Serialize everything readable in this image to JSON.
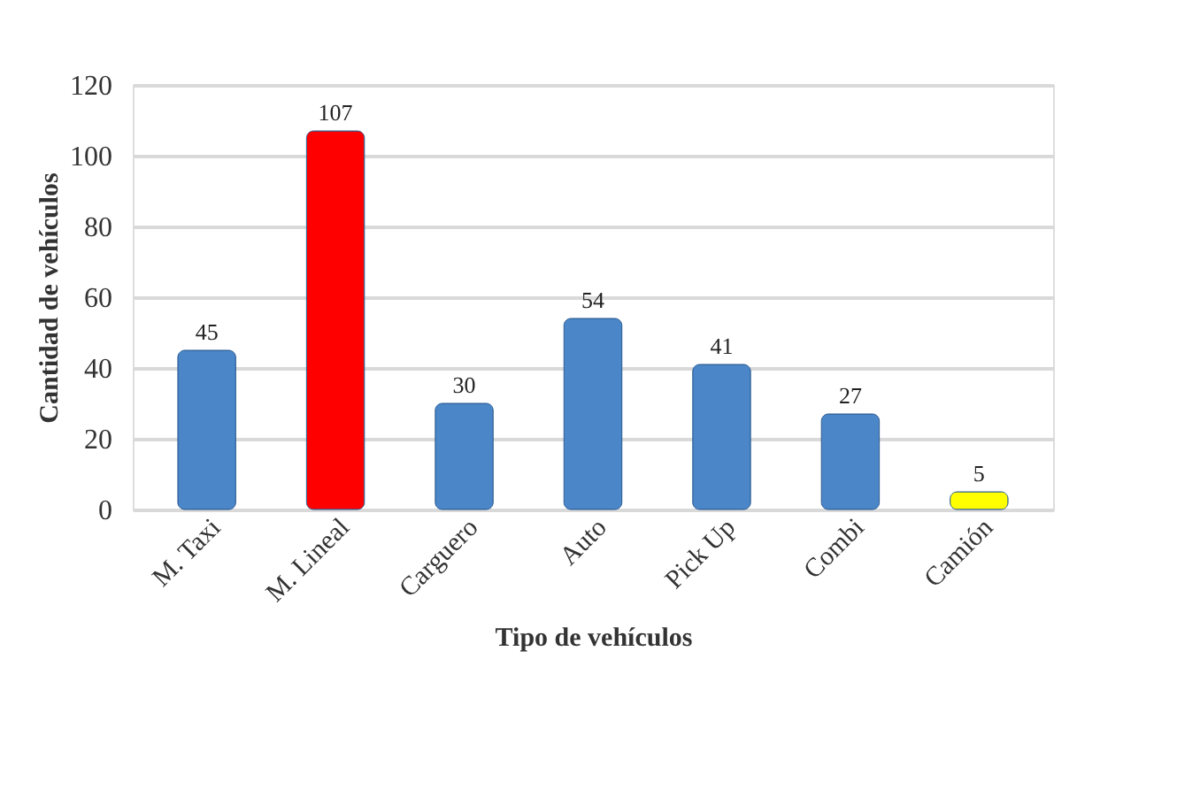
{
  "chart_data": {
    "type": "bar",
    "xlabel": "Tipo de vehículos",
    "ylabel": "Cantidad de vehículos",
    "categories": [
      "M. Taxi",
      "M. Lineal",
      "Carguero",
      "Auto",
      "Pick Up",
      "Combi",
      "Camión"
    ],
    "values": [
      45,
      107,
      30,
      54,
      41,
      27,
      5
    ],
    "colors": [
      "#4a86c8",
      "#ff0000",
      "#4a86c8",
      "#4a86c8",
      "#4a86c8",
      "#4a86c8",
      "#ffff00"
    ],
    "ylim": [
      0,
      120
    ],
    "yticks": [
      0,
      20,
      40,
      60,
      80,
      100,
      120
    ],
    "grid": "y",
    "data_labels": true
  }
}
